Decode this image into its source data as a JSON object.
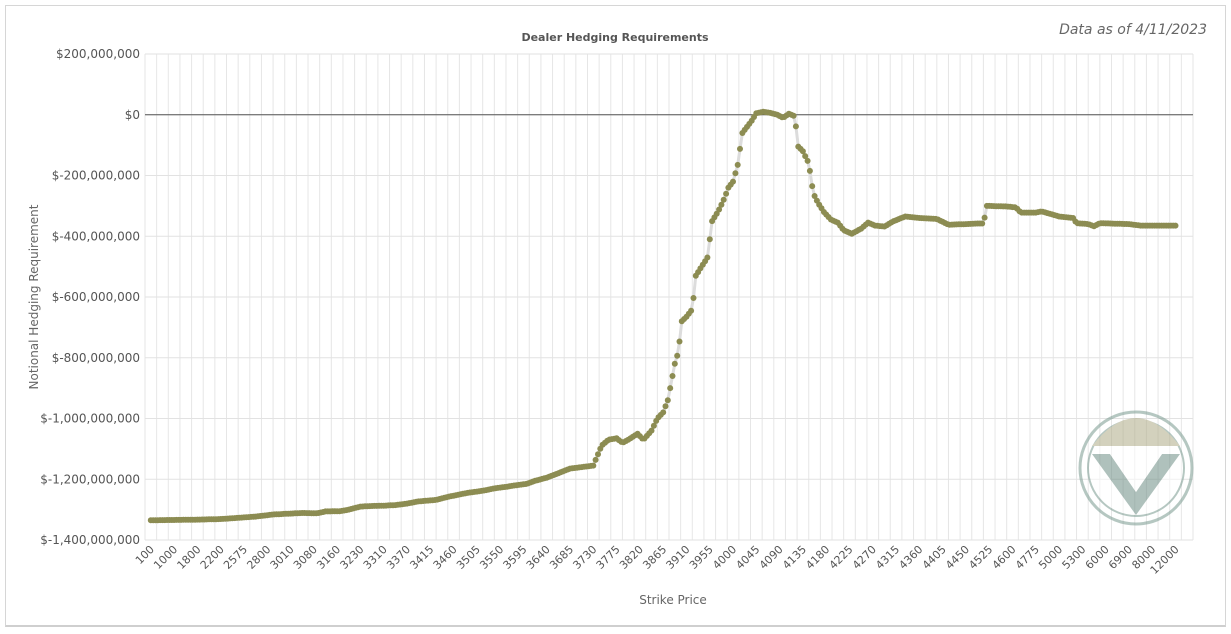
{
  "note": "Data as of 4/11/2023",
  "chart_data": {
    "type": "line",
    "title": "Dealer Hedging Requirements",
    "xlabel": "Strike Price",
    "ylabel": "Notional Hedging Requirement",
    "ylim": [
      -1400000000,
      200000000
    ],
    "yticks": [
      200000000,
      0,
      -200000000,
      -400000000,
      -600000000,
      -800000000,
      -1000000000,
      -1200000000,
      -1400000000
    ],
    "ytick_labels": [
      "$200,000,000",
      "$0",
      "$-200,000,000",
      "$-400,000,000",
      "$-600,000,000",
      "$-800,000,000",
      "$-1,000,000,000",
      "$-1,200,000,000",
      "$-1,400,000,000"
    ],
    "xtick_labels": [
      "100",
      "1000",
      "1800",
      "2200",
      "2575",
      "2800",
      "3010",
      "3080",
      "3160",
      "3230",
      "3310",
      "3370",
      "3415",
      "3460",
      "3505",
      "3550",
      "3595",
      "3640",
      "3685",
      "3730",
      "3775",
      "3820",
      "3865",
      "3910",
      "3955",
      "4000",
      "4045",
      "4090",
      "4135",
      "4180",
      "4225",
      "4270",
      "4315",
      "4360",
      "4405",
      "4450",
      "4525",
      "4600",
      "4775",
      "5000",
      "5300",
      "6000",
      "6900",
      "8000",
      "12000"
    ],
    "grid": true,
    "legend": "none",
    "zero_line": true,
    "marker_color": "#8c8c52",
    "line_color": "#dddddd",
    "series": [
      {
        "profile": [
          [
            0,
            -1335000000
          ],
          [
            2,
            -1334000000
          ],
          [
            4,
            -1333000000
          ],
          [
            6,
            -1331000000
          ],
          [
            7.5,
            -1327000000
          ],
          [
            9,
            -1323000000
          ],
          [
            10.5,
            -1316000000
          ],
          [
            12,
            -1313000000
          ],
          [
            13,
            -1311000000
          ],
          [
            14.3,
            -1312000000
          ],
          [
            15,
            -1306000000
          ],
          [
            16.3,
            -1305000000
          ],
          [
            17,
            -1300000000
          ],
          [
            18,
            -1290000000
          ],
          [
            19,
            -1288000000
          ],
          [
            20,
            -1287000000
          ],
          [
            21,
            -1285000000
          ],
          [
            22,
            -1280000000
          ],
          [
            23,
            -1273000000
          ],
          [
            24.5,
            -1268000000
          ],
          [
            25.5,
            -1258000000
          ],
          [
            26.5,
            -1250000000
          ],
          [
            27.5,
            -1243000000
          ],
          [
            28.5,
            -1238000000
          ],
          [
            29.5,
            -1230000000
          ],
          [
            30.5,
            -1225000000
          ],
          [
            31.3,
            -1220000000
          ],
          [
            32.3,
            -1215000000
          ],
          [
            33,
            -1205000000
          ],
          [
            34,
            -1195000000
          ],
          [
            35,
            -1180000000
          ],
          [
            36,
            -1165000000
          ],
          [
            37,
            -1160000000
          ],
          [
            38,
            -1155000000
          ],
          [
            38.7,
            -1090000000
          ],
          [
            39.3,
            -1070000000
          ],
          [
            40,
            -1065000000
          ],
          [
            40.5,
            -1080000000
          ],
          [
            41,
            -1070000000
          ],
          [
            41.8,
            -1050000000
          ],
          [
            42.3,
            -1070000000
          ],
          [
            43,
            -1040000000
          ],
          [
            43.5,
            -1000000000
          ],
          [
            44,
            -980000000
          ],
          [
            44.4,
            -940000000
          ],
          [
            44.7,
            -880000000
          ],
          [
            45,
            -820000000
          ],
          [
            45.3,
            -780000000
          ],
          [
            45.6,
            -680000000
          ],
          [
            46,
            -665000000
          ],
          [
            46.5,
            -640000000
          ],
          [
            46.8,
            -530000000
          ],
          [
            47.3,
            -500000000
          ],
          [
            47.8,
            -470000000
          ],
          [
            48.2,
            -350000000
          ],
          [
            48.7,
            -320000000
          ],
          [
            49.2,
            -280000000
          ],
          [
            49.6,
            -240000000
          ],
          [
            50,
            -220000000
          ],
          [
            50.4,
            -165000000
          ],
          [
            50.8,
            -60000000
          ],
          [
            51.2,
            -40000000
          ],
          [
            51.6,
            -20000000
          ],
          [
            52,
            5000000
          ],
          [
            52.6,
            10000000
          ],
          [
            53.2,
            6000000
          ],
          [
            53.8,
            0
          ],
          [
            54.3,
            -10000000
          ],
          [
            54.8,
            3000000
          ],
          [
            55.3,
            -5000000
          ],
          [
            55.6,
            -105000000
          ],
          [
            56,
            -120000000
          ],
          [
            56.5,
            -160000000
          ],
          [
            56.9,
            -260000000
          ],
          [
            57.3,
            -290000000
          ],
          [
            57.8,
            -320000000
          ],
          [
            58.4,
            -345000000
          ],
          [
            59,
            -355000000
          ],
          [
            59.5,
            -380000000
          ],
          [
            60.2,
            -392000000
          ],
          [
            61,
            -375000000
          ],
          [
            61.6,
            -355000000
          ],
          [
            62.2,
            -365000000
          ],
          [
            63,
            -368000000
          ],
          [
            63.8,
            -350000000
          ],
          [
            64.8,
            -335000000
          ],
          [
            66,
            -340000000
          ],
          [
            67.5,
            -343000000
          ],
          [
            68.5,
            -362000000
          ],
          [
            70,
            -360000000
          ],
          [
            71,
            -358000000
          ],
          [
            71.5,
            -358000000
          ],
          [
            71.8,
            -300000000
          ],
          [
            73.5,
            -302000000
          ],
          [
            74.3,
            -305000000
          ],
          [
            74.7,
            -322000000
          ],
          [
            76,
            -322000000
          ],
          [
            76.5,
            -318000000
          ],
          [
            78,
            -335000000
          ],
          [
            79.2,
            -340000000
          ],
          [
            79.5,
            -357000000
          ],
          [
            80.5,
            -360000000
          ],
          [
            81,
            -367000000
          ],
          [
            81.5,
            -357000000
          ],
          [
            84,
            -360000000
          ],
          [
            85,
            -365000000
          ],
          [
            88,
            -365000000
          ]
        ]
      }
    ]
  }
}
